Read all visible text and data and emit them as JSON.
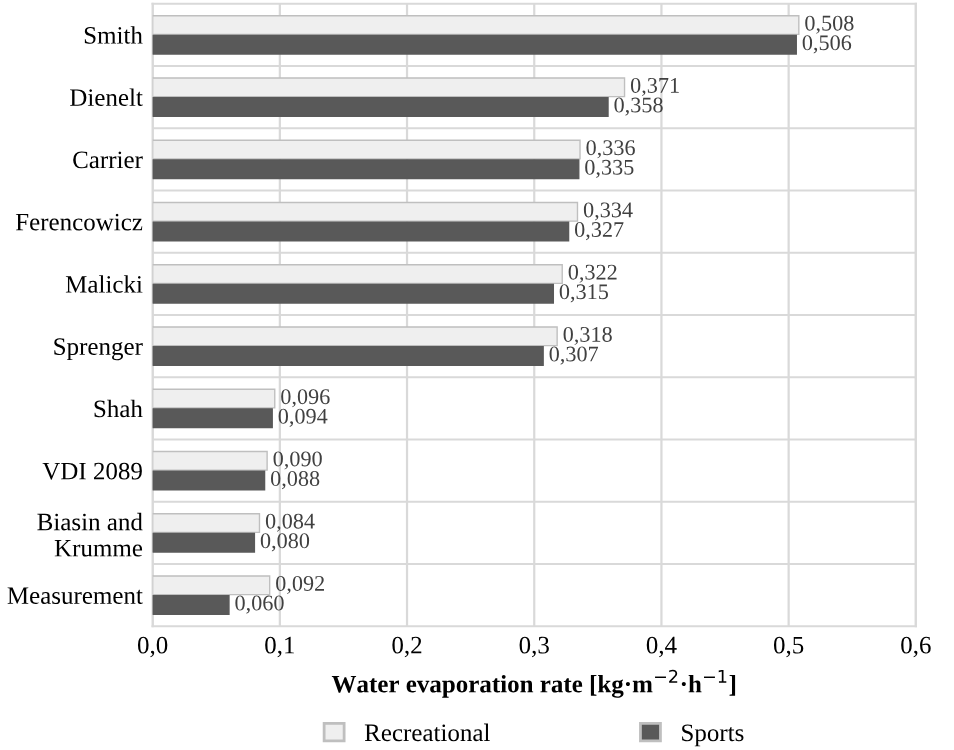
{
  "chart_data": {
    "type": "bar",
    "orientation": "horizontal",
    "xlabel": "Water evaporation rate [kg·m$^{−2}$·h$^{−1}$]",
    "categories": [
      "Smith",
      "Dienelt",
      "Carrier",
      "Ferencowicz",
      "Malicki",
      "Sprenger",
      "Shah",
      "VDI 2089",
      "Biasin and Krumme",
      "Measurement"
    ],
    "series": [
      {
        "name": "Recreational",
        "color": "#efefef",
        "values": [
          0.508,
          0.371,
          0.336,
          0.334,
          0.322,
          0.318,
          0.096,
          0.09,
          0.084,
          0.092
        ],
        "value_labels": [
          "0,508",
          "0,371",
          "0,336",
          "0,334",
          "0,322",
          "0,318",
          "0,096",
          "0,090",
          "0,084",
          "0,092"
        ]
      },
      {
        "name": "Sports",
        "color": "#595959",
        "values": [
          0.506,
          0.358,
          0.335,
          0.327,
          0.315,
          0.307,
          0.094,
          0.088,
          0.08,
          0.06
        ],
        "value_labels": [
          "0,506",
          "0,358",
          "0,335",
          "0,327",
          "0,315",
          "0,307",
          "0,094",
          "0,088",
          "0,080",
          "0,060"
        ]
      }
    ],
    "xlim": [
      0,
      0.6
    ],
    "xticks": [
      {
        "value": 0,
        "label": "0,0"
      },
      {
        "value": 0.1,
        "label": "0,1"
      },
      {
        "value": 0.2,
        "label": "0,2"
      },
      {
        "value": 0.3,
        "label": "0,3"
      },
      {
        "value": 0.4,
        "label": "0,4"
      },
      {
        "value": 0.5,
        "label": "0,5"
      },
      {
        "value": 0.6,
        "label": "0,6"
      }
    ],
    "grid": "x",
    "legend": "bottom"
  }
}
